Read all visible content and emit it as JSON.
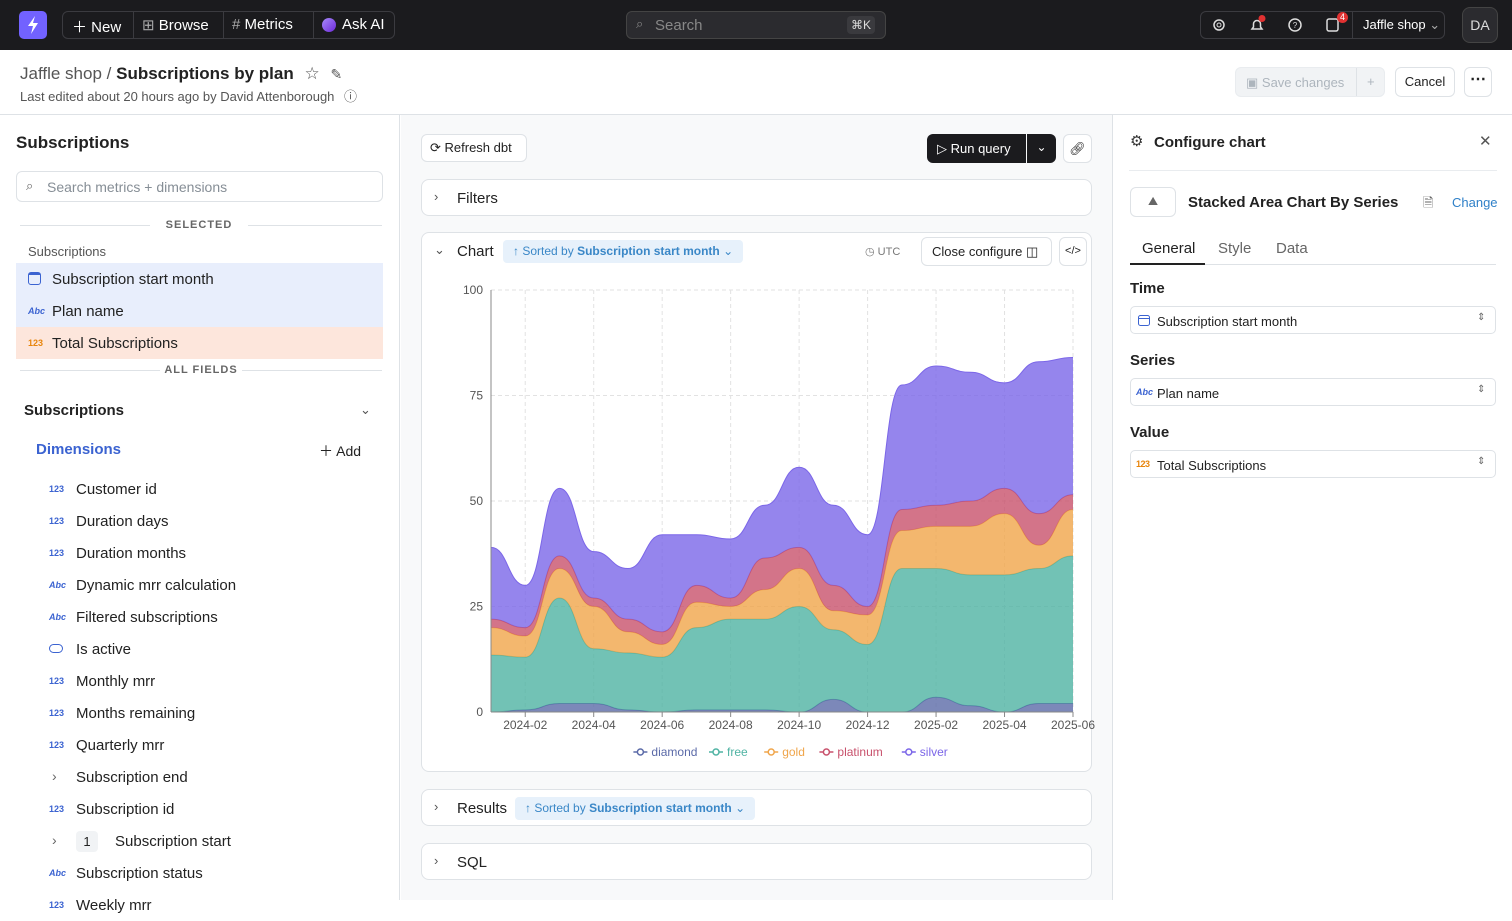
{
  "nav": {
    "new": "New",
    "browse": "Browse",
    "metrics": "Metrics",
    "ask_ai": "Ask AI",
    "search": "Search",
    "shortcut": "⌘K",
    "badge": "4",
    "project": "Jaffle shop",
    "avatar": "DA"
  },
  "header": {
    "project": "Jaffle shop",
    "separator": "/",
    "title": "Subscriptions by plan",
    "meta": "Last edited about 20 hours ago by David Attenborough",
    "save": "Save changes",
    "cancel": "Cancel"
  },
  "explorer": {
    "title": "Subscriptions",
    "search": "Search metrics + dimensions",
    "selected_heading": "SELECTED",
    "selected_group": "Subscriptions",
    "selected": [
      {
        "label": "Subscription start month"
      },
      {
        "icon": "Abc",
        "label": "Plan name"
      },
      {
        "icon": "123",
        "label": "Total Subscriptions"
      }
    ],
    "all_heading": "ALL FIELDS",
    "table": "Subscriptions",
    "dimensions": "Dimensions",
    "add": "Add",
    "fields": [
      {
        "icon": "123",
        "label": "Customer id"
      },
      {
        "icon": "123",
        "label": "Duration days"
      },
      {
        "icon": "123",
        "label": "Duration months"
      },
      {
        "icon": "Abc",
        "label": "Dynamic mrr calculation"
      },
      {
        "icon": "Abc",
        "label": "Filtered subscriptions"
      },
      {
        "label": "Is active"
      },
      {
        "icon": "123",
        "label": "Monthly mrr"
      },
      {
        "icon": "123",
        "label": "Months remaining"
      },
      {
        "icon": "123",
        "label": "Quarterly mrr"
      },
      {
        "label": "Subscription end"
      },
      {
        "icon": "123",
        "label": "Subscription id"
      },
      {
        "badge": "1",
        "label": "Subscription start"
      },
      {
        "icon": "Abc",
        "label": "Subscription status"
      },
      {
        "icon": "123",
        "label": "Weekly mrr"
      }
    ]
  },
  "toolbar": {
    "refresh": "Refresh dbt",
    "run": "Run query"
  },
  "filters": {
    "title": "Filters"
  },
  "chart_panel": {
    "title": "Chart",
    "sorted_by": "Sorted by",
    "sort_field": "Subscription start month",
    "timezone": "UTC",
    "close": "Close configure"
  },
  "results": {
    "title": "Results",
    "sorted_by": "Sorted by",
    "sort_field": "Subscription start month"
  },
  "sql": {
    "title": "SQL"
  },
  "config": {
    "title": "Configure chart",
    "chart_name": "Stacked Area Chart By Series",
    "change": "Change",
    "tabs": [
      "General",
      "Style",
      "Data"
    ],
    "time_label": "Time",
    "time_value": "Subscription start month",
    "series_label": "Series",
    "series_icon": "Abc",
    "series_value": "Plan name",
    "value_label": "Value",
    "value_icon": "123",
    "value_value": "Total Subscriptions"
  },
  "chart_data": {
    "type": "area",
    "stacked": true,
    "categories": [
      null,
      "2024-02",
      null,
      "2024-04",
      null,
      "2024-06",
      null,
      "2024-08",
      null,
      "2024-10",
      null,
      "2024-12",
      null,
      "2025-02",
      null,
      "2025-04",
      null,
      "2025-06"
    ],
    "series": [
      {
        "name": "diamond",
        "color": "#5b6aa8",
        "values": [
          0,
          0.5,
          2,
          2,
          0.5,
          0,
          0.5,
          0.5,
          0.5,
          0,
          3,
          0,
          0,
          3.5,
          1.5,
          0,
          2,
          2
        ]
      },
      {
        "name": "free",
        "color": "#4fb3a3",
        "values": [
          13.5,
          12.5,
          25,
          13,
          13.5,
          13,
          19.5,
          21.5,
          21.5,
          25,
          16.5,
          16,
          34,
          30.5,
          31,
          32.5,
          32,
          35
        ]
      },
      {
        "name": "gold",
        "color": "#f0a54a",
        "values": [
          6.5,
          5,
          7,
          10,
          5,
          3,
          6,
          3,
          7,
          9,
          4.5,
          7,
          9,
          10,
          11.5,
          14.5,
          5.5,
          11
        ]
      },
      {
        "name": "platinum",
        "color": "#c8516c",
        "values": [
          2,
          2,
          3,
          2,
          3,
          3,
          4,
          2,
          7.5,
          5,
          6,
          2,
          5,
          5,
          6,
          6,
          7.5,
          3.5
        ]
      },
      {
        "name": "silver",
        "color": "#7b66e8",
        "values": [
          17,
          10,
          16,
          11,
          12,
          23,
          12,
          14,
          12.5,
          19,
          19,
          17,
          29.5,
          33,
          30.5,
          25,
          36,
          32.5
        ]
      }
    ],
    "ylim": [
      0,
      100
    ],
    "yticks": [
      0,
      25,
      50,
      75,
      100
    ],
    "grid": true,
    "legend": "bottom"
  }
}
